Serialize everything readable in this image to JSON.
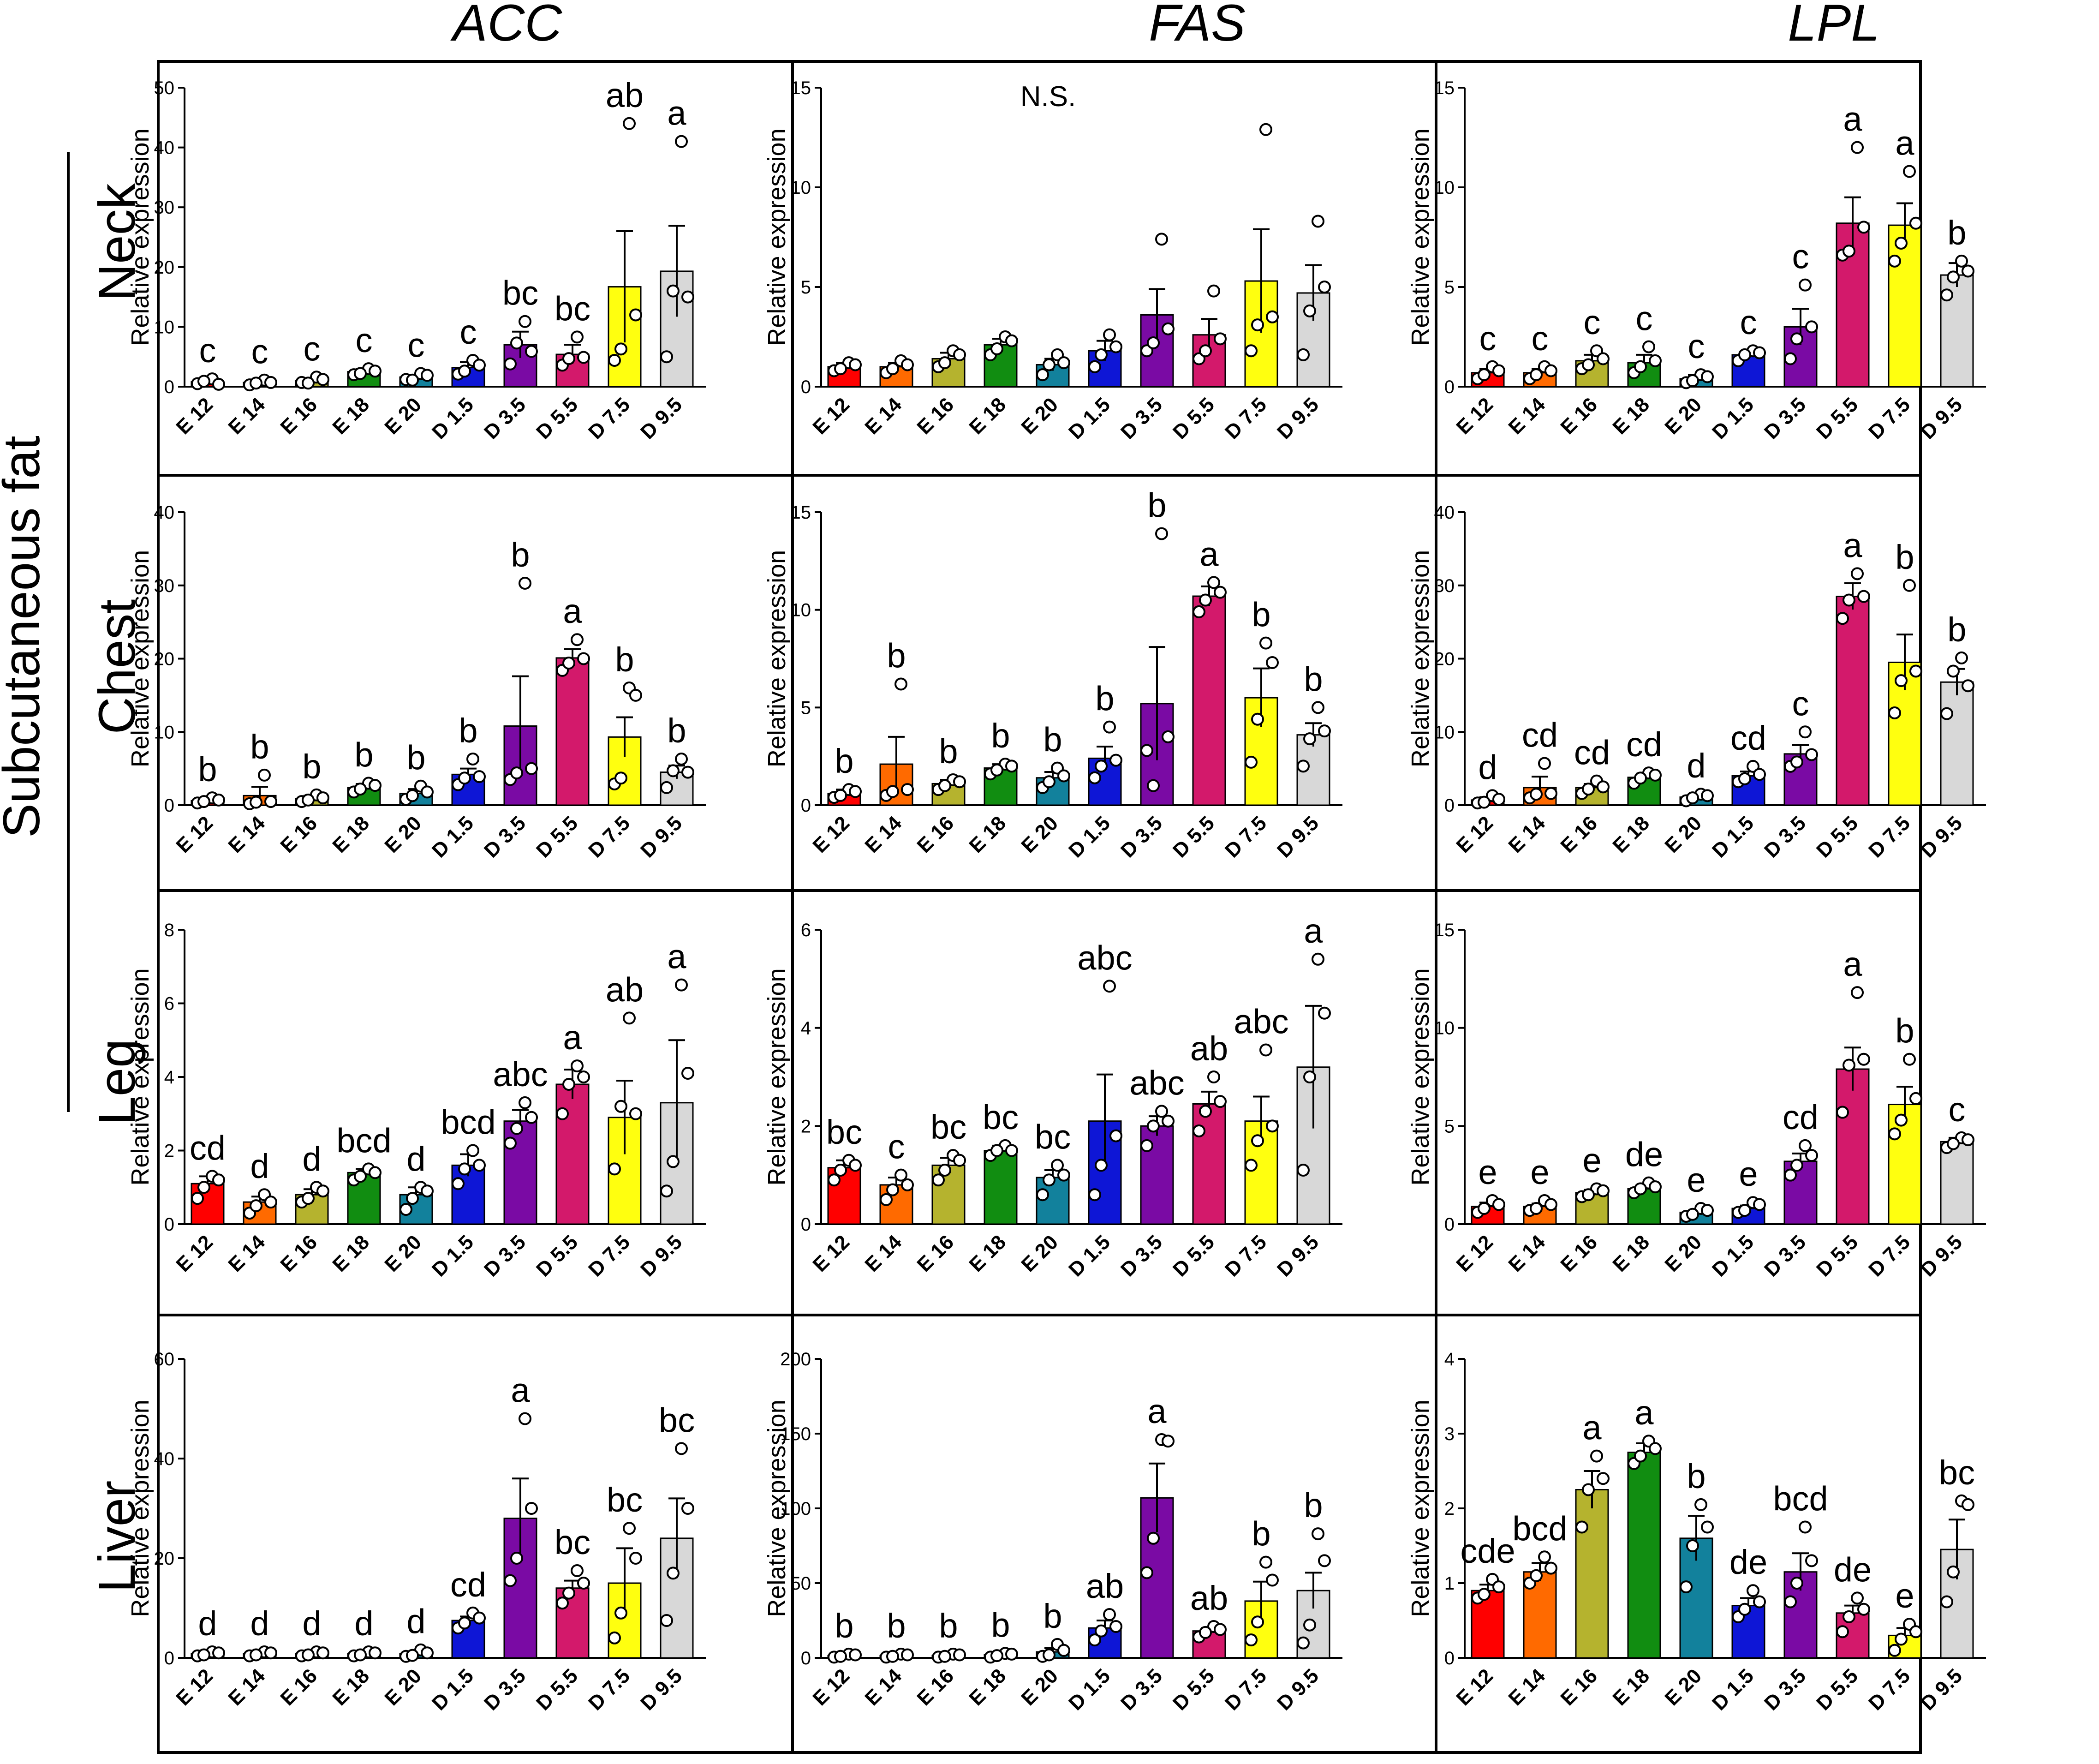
{
  "figure": {
    "columns": [
      "ACC",
      "FAS",
      "LPL"
    ],
    "rows": [
      "Neck",
      "Chest",
      "Leg",
      "Liver"
    ],
    "group_label": "Subcutaneous fat",
    "y_title": "Relative expression",
    "categories": [
      "E 12",
      "E 14",
      "E 16",
      "E 18",
      "E 20",
      "D 1.5",
      "D 3.5",
      "D 5.5",
      "D 7.5",
      "D 9.5"
    ],
    "colors": [
      "#ff0000",
      "#ff6a00",
      "#b5b32e",
      "#118d11",
      "#12819c",
      "#0e16d6",
      "#7a0aa4",
      "#d3196b",
      "#ffff0f",
      "#d8d8d8"
    ]
  },
  "chart_data": [
    {
      "type": "bar",
      "title": "ACC",
      "row": "Neck",
      "ylabel": "Relative expression",
      "ylim": [
        0,
        50
      ],
      "yticks": [
        0,
        10,
        20,
        30,
        40,
        50
      ],
      "values": [
        0.8,
        0.7,
        1.0,
        2.5,
        1.6,
        3.2,
        7.0,
        5.4,
        16.7,
        19.3
      ],
      "errors": [
        0.3,
        0.3,
        0.4,
        0.5,
        0.4,
        0.9,
        2.2,
        1.6,
        9.3,
        7.6
      ],
      "points": [
        [
          0.5,
          1.3,
          0.4,
          0.9
        ],
        [
          0.3,
          1.1,
          0.7,
          0.6
        ],
        [
          0.7,
          1.6,
          1.2,
          0.6
        ],
        [
          2.0,
          3.0,
          2.6,
          2.2
        ],
        [
          1.2,
          2.2,
          1.9,
          1.1
        ],
        [
          2.1,
          4.4,
          3.6,
          2.6
        ],
        [
          3.8,
          10.9,
          5.9,
          7.3
        ],
        [
          3.6,
          8.3,
          4.9,
          4.7
        ],
        [
          4.4,
          44.0,
          12.0,
          6.3
        ],
        [
          5.0,
          41.0,
          15.0,
          16.0
        ]
      ],
      "letters": [
        "c",
        "c",
        "c",
        "c",
        "c",
        "c",
        "bc",
        "bc",
        "ab",
        "a"
      ]
    },
    {
      "type": "bar",
      "title": "FAS",
      "row": "Neck",
      "ylabel": "Relative expression",
      "ylim": [
        0,
        15
      ],
      "yticks": [
        0,
        5,
        10,
        15
      ],
      "annotation": "N.S.",
      "values": [
        1.0,
        1.0,
        1.4,
        2.1,
        1.1,
        1.8,
        3.6,
        2.6,
        5.3,
        4.7
      ],
      "errors": [
        0.2,
        0.2,
        0.3,
        0.3,
        0.3,
        0.5,
        1.3,
        0.8,
        2.6,
        1.4
      ],
      "points": [
        [
          0.8,
          1.2,
          1.1,
          0.9
        ],
        [
          0.7,
          1.3,
          1.1,
          0.9
        ],
        [
          1.0,
          1.8,
          1.6,
          1.2
        ],
        [
          1.6,
          2.5,
          2.3,
          1.9
        ],
        [
          0.6,
          1.6,
          1.2,
          1.1
        ],
        [
          1.0,
          2.6,
          2.0,
          1.6
        ],
        [
          1.8,
          7.4,
          2.9,
          2.2
        ],
        [
          1.4,
          4.8,
          2.4,
          1.8
        ],
        [
          1.8,
          12.9,
          3.5,
          3.1
        ],
        [
          1.6,
          8.3,
          5.0,
          3.8
        ]
      ],
      "letters": []
    },
    {
      "type": "bar",
      "title": "LPL",
      "row": "Neck",
      "ylabel": "Relative expression",
      "ylim": [
        0,
        15
      ],
      "yticks": [
        0,
        5,
        10,
        15
      ],
      "values": [
        0.7,
        0.7,
        1.3,
        1.2,
        0.4,
        1.6,
        3.0,
        8.2,
        8.1,
        5.6
      ],
      "errors": [
        0.2,
        0.2,
        0.3,
        0.4,
        0.2,
        0.2,
        0.9,
        1.3,
        1.1,
        0.6
      ],
      "points": [
        [
          0.4,
          1.0,
          0.8,
          0.6
        ],
        [
          0.4,
          1.0,
          0.8,
          0.6
        ],
        [
          0.9,
          1.8,
          1.4,
          1.1
        ],
        [
          0.7,
          2.0,
          1.3,
          1.0
        ],
        [
          0.2,
          0.6,
          0.5,
          0.3
        ],
        [
          1.3,
          1.8,
          1.7,
          1.6
        ],
        [
          1.4,
          5.1,
          3.0,
          2.4
        ],
        [
          6.6,
          12.0,
          8.0,
          6.8
        ],
        [
          6.3,
          10.8,
          8.2,
          7.2
        ],
        [
          4.6,
          6.3,
          5.8,
          5.5
        ]
      ],
      "letters": [
        "c",
        "c",
        "c",
        "c",
        "c",
        "c",
        "c",
        "a",
        "a",
        "b"
      ]
    },
    {
      "type": "bar",
      "title": "ACC",
      "row": "Chest",
      "ylabel": "Relative expression",
      "ylim": [
        0,
        40
      ],
      "yticks": [
        0,
        10,
        20,
        30,
        40
      ],
      "values": [
        0.6,
        1.3,
        0.9,
        2.4,
        1.6,
        4.2,
        10.8,
        20.1,
        9.3,
        4.5
      ],
      "errors": [
        0.3,
        1.2,
        0.4,
        0.5,
        0.6,
        0.8,
        6.8,
        1.2,
        2.7,
        0.9
      ],
      "points": [
        [
          0.3,
          1.0,
          0.7,
          0.5
        ],
        [
          0.2,
          4.1,
          0.5,
          0.4
        ],
        [
          0.5,
          1.4,
          1.0,
          0.7
        ],
        [
          1.8,
          3.0,
          2.7,
          2.2
        ],
        [
          0.8,
          2.6,
          1.8,
          1.3
        ],
        [
          2.8,
          6.3,
          3.9,
          3.7
        ],
        [
          3.5,
          30.3,
          5.0,
          4.4
        ],
        [
          18.4,
          22.6,
          20.0,
          19.4
        ],
        [
          2.9,
          16.0,
          15.0,
          3.7
        ],
        [
          2.4,
          6.3,
          4.5,
          4.7
        ]
      ],
      "letters": [
        "b",
        "b",
        "b",
        "b",
        "b",
        "b",
        "b",
        "a",
        "b",
        "b"
      ]
    },
    {
      "type": "bar",
      "title": "FAS",
      "row": "Chest",
      "ylabel": "Relative expression",
      "ylim": [
        0,
        15
      ],
      "yticks": [
        0,
        5,
        10,
        15
      ],
      "values": [
        0.6,
        2.1,
        1.1,
        1.9,
        1.4,
        2.4,
        5.2,
        10.7,
        5.5,
        3.6
      ],
      "errors": [
        0.2,
        1.4,
        0.2,
        0.2,
        0.3,
        0.6,
        2.9,
        0.5,
        1.5,
        0.6
      ],
      "points": [
        [
          0.4,
          0.8,
          0.7,
          0.5
        ],
        [
          0.5,
          6.2,
          0.8,
          0.7
        ],
        [
          0.8,
          1.3,
          1.2,
          1.0
        ],
        [
          1.6,
          2.1,
          2.0,
          1.8
        ],
        [
          0.9,
          1.9,
          1.5,
          1.2
        ],
        [
          1.4,
          4.0,
          2.3,
          2.0
        ],
        [
          2.8,
          13.9,
          3.5,
          1.0
        ],
        [
          9.9,
          11.4,
          10.9,
          10.5
        ],
        [
          2.2,
          8.3,
          7.3,
          4.4
        ],
        [
          2.0,
          5.0,
          3.8,
          3.4
        ]
      ],
      "letters": [
        "b",
        "b",
        "b",
        "b",
        "b",
        "b",
        "b",
        "a",
        "b",
        "b"
      ]
    },
    {
      "type": "bar",
      "title": "LPL",
      "row": "Chest",
      "ylabel": "Relative expression",
      "ylim": [
        0,
        40
      ],
      "yticks": [
        0,
        10,
        20,
        30,
        40
      ],
      "values": [
        0.7,
        2.4,
        2.4,
        3.8,
        1.1,
        4.0,
        7.0,
        28.5,
        19.5,
        16.8
      ],
      "errors": [
        0.4,
        1.5,
        0.5,
        0.5,
        0.4,
        0.6,
        1.2,
        1.8,
        3.8,
        1.8
      ],
      "points": [
        [
          0.3,
          1.3,
          0.8,
          0.4
        ],
        [
          1.0,
          5.7,
          1.6,
          1.5
        ],
        [
          1.6,
          3.3,
          2.5,
          2.2
        ],
        [
          3.0,
          4.4,
          4.1,
          3.7
        ],
        [
          0.6,
          1.5,
          1.3,
          1.0
        ],
        [
          3.2,
          5.3,
          4.2,
          3.6
        ],
        [
          5.3,
          10.0,
          6.9,
          5.9
        ],
        [
          25.5,
          31.6,
          28.5,
          28.0
        ],
        [
          12.6,
          30.0,
          18.3,
          17.0
        ],
        [
          12.5,
          20.1,
          16.3,
          18.3
        ]
      ],
      "letters": [
        "d",
        "cd",
        "cd",
        "cd",
        "d",
        "cd",
        "c",
        "a",
        "b",
        "b"
      ]
    },
    {
      "type": "bar",
      "title": "ACC",
      "row": "Leg",
      "ylabel": "Relative expression",
      "ylim": [
        0,
        8
      ],
      "yticks": [
        0,
        2,
        4,
        6,
        8
      ],
      "values": [
        1.1,
        0.6,
        0.8,
        1.4,
        0.8,
        1.6,
        2.8,
        3.8,
        2.9,
        3.3
      ],
      "errors": [
        0.2,
        0.15,
        0.15,
        0.1,
        0.2,
        0.3,
        0.3,
        0.4,
        1.0,
        1.7
      ],
      "points": [
        [
          0.7,
          1.3,
          1.2,
          1.0
        ],
        [
          0.3,
          0.8,
          0.6,
          0.5
        ],
        [
          0.6,
          1.0,
          0.9,
          0.7
        ],
        [
          1.2,
          1.5,
          1.4,
          1.3
        ],
        [
          0.4,
          1.0,
          0.9,
          0.7
        ],
        [
          1.1,
          2.0,
          1.6,
          1.5
        ],
        [
          2.2,
          3.3,
          2.9,
          2.6
        ],
        [
          3.0,
          4.3,
          4.0,
          3.8
        ],
        [
          1.5,
          5.6,
          3.0,
          3.2
        ],
        [
          0.9,
          6.5,
          4.1,
          1.7
        ]
      ],
      "letters": [
        "cd",
        "d",
        "d",
        "bcd",
        "d",
        "bcd",
        "abc",
        "a",
        "ab",
        "a"
      ]
    },
    {
      "type": "bar",
      "title": "FAS",
      "row": "Leg",
      "ylabel": "Relative expression",
      "ylim": [
        0,
        6
      ],
      "yticks": [
        0,
        2,
        4,
        6
      ],
      "values": [
        1.15,
        0.8,
        1.2,
        1.5,
        0.95,
        2.1,
        2.0,
        2.45,
        2.1,
        3.2
      ],
      "errors": [
        0.15,
        0.15,
        0.15,
        0.1,
        0.15,
        0.95,
        0.2,
        0.25,
        0.5,
        1.25
      ],
      "points": [
        [
          0.9,
          1.3,
          1.2,
          1.1
        ],
        [
          0.5,
          1.0,
          0.8,
          0.7
        ],
        [
          0.9,
          1.4,
          1.3,
          1.1
        ],
        [
          1.4,
          1.6,
          1.5,
          1.5
        ],
        [
          0.6,
          1.2,
          1.0,
          0.9
        ],
        [
          0.6,
          4.85,
          1.8,
          1.2
        ],
        [
          1.6,
          2.3,
          2.1,
          2.0
        ],
        [
          1.9,
          3.0,
          2.5,
          2.3
        ],
        [
          1.2,
          3.55,
          2.0,
          1.7
        ],
        [
          1.1,
          5.4,
          4.3,
          3.0
        ]
      ],
      "letters": [
        "bc",
        "c",
        "bc",
        "bc",
        "bc",
        "abc",
        "abc",
        "ab",
        "abc",
        "a"
      ]
    },
    {
      "type": "bar",
      "title": "LPL",
      "row": "Leg",
      "ylabel": "Relative expression",
      "ylim": [
        0,
        15
      ],
      "yticks": [
        0,
        5,
        10,
        15
      ],
      "values": [
        0.9,
        0.9,
        1.6,
        1.8,
        0.6,
        0.8,
        3.2,
        7.9,
        6.1,
        4.2
      ],
      "errors": [
        0.2,
        0.15,
        0.15,
        0.15,
        0.1,
        0.15,
        0.4,
        1.1,
        0.9,
        0.2
      ],
      "points": [
        [
          0.6,
          1.2,
          1.0,
          0.8
        ],
        [
          0.7,
          1.2,
          1.0,
          0.8
        ],
        [
          1.4,
          1.8,
          1.7,
          1.5
        ],
        [
          1.6,
          2.1,
          1.9,
          1.8
        ],
        [
          0.4,
          0.8,
          0.7,
          0.5
        ],
        [
          0.6,
          1.1,
          1.0,
          0.7
        ],
        [
          2.5,
          4.0,
          3.5,
          3.0
        ],
        [
          5.7,
          11.8,
          8.4,
          8.1
        ],
        [
          4.6,
          8.4,
          6.4,
          5.3
        ],
        [
          3.9,
          4.4,
          4.3,
          4.1
        ]
      ],
      "letters": [
        "e",
        "e",
        "e",
        "de",
        "e",
        "e",
        "cd",
        "a",
        "b",
        "c"
      ]
    },
    {
      "type": "bar",
      "title": "ACC",
      "row": "Liver",
      "ylabel": "Relative expression",
      "ylim": [
        0,
        60
      ],
      "yticks": [
        0,
        20,
        40,
        60
      ],
      "values": [
        0.8,
        0.8,
        0.8,
        0.8,
        0.8,
        7.5,
        28.0,
        14.0,
        15.0,
        24.0
      ],
      "errors": [
        0.2,
        0.2,
        0.2,
        0.2,
        0.3,
        0.8,
        8.0,
        1.5,
        7.0,
        8.0
      ],
      "points": [
        [
          0.4,
          1.2,
          1.0,
          0.6
        ],
        [
          0.4,
          1.2,
          1.0,
          0.6
        ],
        [
          0.4,
          1.2,
          1.0,
          0.6
        ],
        [
          0.4,
          1.2,
          1.0,
          0.6
        ],
        [
          0.3,
          1.6,
          1.0,
          0.5
        ],
        [
          6.0,
          9.0,
          8.0,
          7.0
        ],
        [
          15.5,
          48.0,
          30.0,
          20.0
        ],
        [
          11.0,
          17.5,
          15.0,
          13.0
        ],
        [
          4.0,
          26.0,
          20.0,
          9.0
        ],
        [
          7.5,
          42.0,
          30.0,
          17.0
        ]
      ],
      "letters": [
        "d",
        "d",
        "d",
        "d",
        "d",
        "cd",
        "a",
        "bc",
        "bc",
        "bc"
      ]
    },
    {
      "type": "bar",
      "title": "FAS",
      "row": "Liver",
      "ylabel": "Relative expression",
      "ylim": [
        0,
        200
      ],
      "yticks": [
        0,
        50,
        100,
        150,
        200
      ],
      "values": [
        1.5,
        1.5,
        1.5,
        2.0,
        4.0,
        20.0,
        107.0,
        18.0,
        38.0,
        45.0
      ],
      "errors": [
        0.5,
        0.5,
        0.5,
        0.5,
        2.5,
        5.0,
        23.0,
        2.0,
        13.0,
        12.0
      ],
      "points": [
        [
          0.5,
          2.5,
          2.0,
          1.0
        ],
        [
          0.5,
          2.5,
          2.0,
          1.0
        ],
        [
          0.5,
          2.5,
          2.0,
          1.0
        ],
        [
          0.5,
          3.0,
          2.5,
          1.5
        ],
        [
          1.0,
          9.0,
          5.0,
          2.0
        ],
        [
          12.0,
          29.0,
          21.0,
          18.0
        ],
        [
          57.0,
          146.0,
          145.0,
          80.0
        ],
        [
          14.0,
          21.0,
          19.0,
          17.0
        ],
        [
          12.0,
          64.0,
          52.0,
          24.0
        ],
        [
          10.0,
          83.0,
          65.0,
          22.0
        ]
      ],
      "letters": [
        "b",
        "b",
        "b",
        "b",
        "b",
        "ab",
        "a",
        "ab",
        "b",
        "b"
      ]
    },
    {
      "type": "bar",
      "title": "LPL",
      "row": "Liver",
      "ylabel": "Relative expression",
      "ylim": [
        0,
        4
      ],
      "yticks": [
        0,
        1,
        2,
        3,
        4
      ],
      "values": [
        0.9,
        1.15,
        2.25,
        2.75,
        1.6,
        0.7,
        1.15,
        0.6,
        0.3,
        1.45
      ],
      "errors": [
        0.08,
        0.12,
        0.25,
        0.12,
        0.3,
        0.1,
        0.25,
        0.1,
        0.1,
        0.4
      ],
      "points": [
        [
          0.8,
          1.05,
          0.95,
          0.85
        ],
        [
          1.0,
          1.35,
          1.2,
          1.1
        ],
        [
          1.75,
          2.7,
          2.4,
          2.25
        ],
        [
          2.6,
          2.9,
          2.8,
          2.7
        ],
        [
          0.95,
          2.05,
          1.75,
          1.5
        ],
        [
          0.55,
          0.9,
          0.75,
          0.65
        ],
        [
          0.75,
          1.75,
          1.3,
          1.0
        ],
        [
          0.35,
          0.8,
          0.65,
          0.55
        ],
        [
          0.1,
          0.45,
          0.35,
          0.25
        ],
        [
          0.75,
          2.1,
          2.05,
          1.15
        ]
      ],
      "letters": [
        "cde",
        "bcd",
        "a",
        "a",
        "b",
        "de",
        "bcd",
        "de",
        "e",
        "bc"
      ]
    }
  ]
}
